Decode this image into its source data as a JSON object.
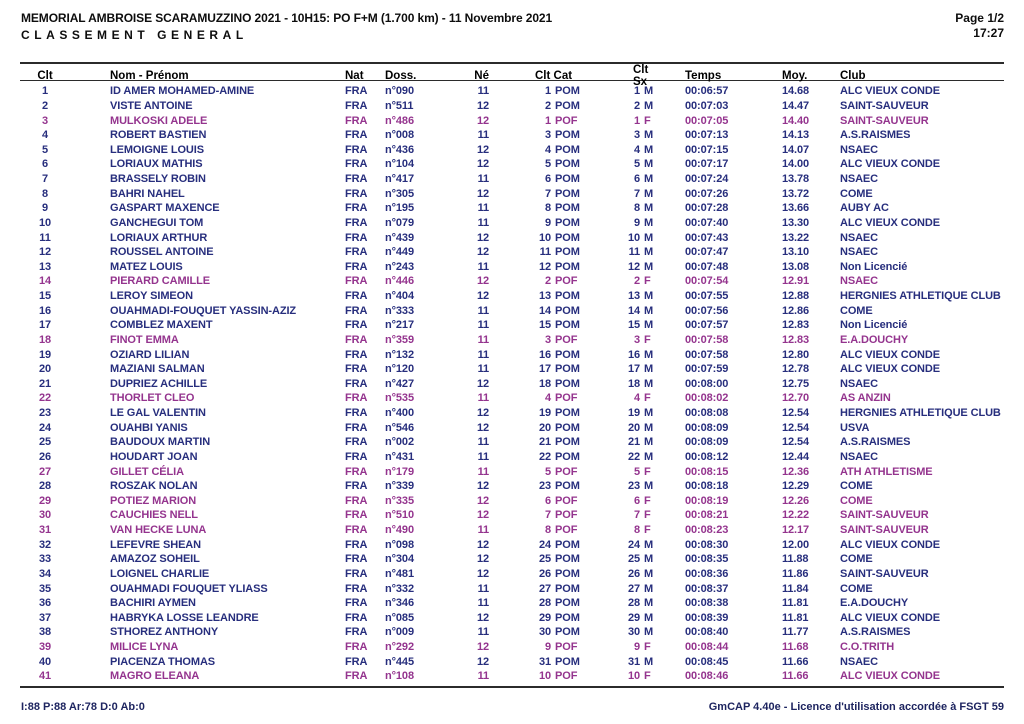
{
  "header": {
    "title": "MEMORIAL AMBROISE SCARAMUZZINO 2021 - 10H15: PO F+M (1.700 km) - 11 Novembre 2021",
    "subtitle": "CLASSEMENT GENERAL",
    "page": "Page 1/2",
    "time": "17:27"
  },
  "colors": {
    "male_row": "#272E7D",
    "female_row": "#94348E"
  },
  "table": {
    "columns": [
      "Clt",
      "Nom - Prénom",
      "Nat",
      "Doss.",
      "Né",
      "Clt Cat",
      "Clt Sx",
      "Temps",
      "Moy.",
      "Club"
    ],
    "rows": [
      {
        "clt": "1",
        "name": "ID AMER MOHAMED-AMINE",
        "nat": "FRA",
        "doss": "n°090",
        "ne": "11",
        "cat_rank": "1",
        "cat": "POM",
        "sx_rank": "1",
        "sx": "M",
        "temps": "00:06:57",
        "moy": "14.68",
        "club": "ALC VIEUX CONDE"
      },
      {
        "clt": "2",
        "name": "VISTE ANTOINE",
        "nat": "FRA",
        "doss": "n°511",
        "ne": "12",
        "cat_rank": "2",
        "cat": "POM",
        "sx_rank": "2",
        "sx": "M",
        "temps": "00:07:03",
        "moy": "14.47",
        "club": "SAINT-SAUVEUR"
      },
      {
        "clt": "3",
        "name": "MULKOSKI ADELE",
        "nat": "FRA",
        "doss": "n°486",
        "ne": "12",
        "cat_rank": "1",
        "cat": "POF",
        "sx_rank": "1",
        "sx": "F",
        "temps": "00:07:05",
        "moy": "14.40",
        "club": "SAINT-SAUVEUR"
      },
      {
        "clt": "4",
        "name": "ROBERT BASTIEN",
        "nat": "FRA",
        "doss": "n°008",
        "ne": "11",
        "cat_rank": "3",
        "cat": "POM",
        "sx_rank": "3",
        "sx": "M",
        "temps": "00:07:13",
        "moy": "14.13",
        "club": "A.S.RAISMES"
      },
      {
        "clt": "5",
        "name": "LEMOIGNE LOUIS",
        "nat": "FRA",
        "doss": "n°436",
        "ne": "12",
        "cat_rank": "4",
        "cat": "POM",
        "sx_rank": "4",
        "sx": "M",
        "temps": "00:07:15",
        "moy": "14.07",
        "club": "NSAEC"
      },
      {
        "clt": "6",
        "name": "LORIAUX MATHIS",
        "nat": "FRA",
        "doss": "n°104",
        "ne": "12",
        "cat_rank": "5",
        "cat": "POM",
        "sx_rank": "5",
        "sx": "M",
        "temps": "00:07:17",
        "moy": "14.00",
        "club": "ALC VIEUX CONDE"
      },
      {
        "clt": "7",
        "name": "BRASSELY ROBIN",
        "nat": "FRA",
        "doss": "n°417",
        "ne": "11",
        "cat_rank": "6",
        "cat": "POM",
        "sx_rank": "6",
        "sx": "M",
        "temps": "00:07:24",
        "moy": "13.78",
        "club": "NSAEC"
      },
      {
        "clt": "8",
        "name": "BAHRI NAHEL",
        "nat": "FRA",
        "doss": "n°305",
        "ne": "12",
        "cat_rank": "7",
        "cat": "POM",
        "sx_rank": "7",
        "sx": "M",
        "temps": "00:07:26",
        "moy": "13.72",
        "club": "COME"
      },
      {
        "clt": "9",
        "name": "GASPART MAXENCE",
        "nat": "FRA",
        "doss": "n°195",
        "ne": "11",
        "cat_rank": "8",
        "cat": "POM",
        "sx_rank": "8",
        "sx": "M",
        "temps": "00:07:28",
        "moy": "13.66",
        "club": "AUBY AC"
      },
      {
        "clt": "10",
        "name": "GANCHEGUI TOM",
        "nat": "FRA",
        "doss": "n°079",
        "ne": "11",
        "cat_rank": "9",
        "cat": "POM",
        "sx_rank": "9",
        "sx": "M",
        "temps": "00:07:40",
        "moy": "13.30",
        "club": "ALC VIEUX CONDE"
      },
      {
        "clt": "11",
        "name": "LORIAUX ARTHUR",
        "nat": "FRA",
        "doss": "n°439",
        "ne": "12",
        "cat_rank": "10",
        "cat": "POM",
        "sx_rank": "10",
        "sx": "M",
        "temps": "00:07:43",
        "moy": "13.22",
        "club": "NSAEC"
      },
      {
        "clt": "12",
        "name": "ROUSSEL ANTOINE",
        "nat": "FRA",
        "doss": "n°449",
        "ne": "12",
        "cat_rank": "11",
        "cat": "POM",
        "sx_rank": "11",
        "sx": "M",
        "temps": "00:07:47",
        "moy": "13.10",
        "club": "NSAEC"
      },
      {
        "clt": "13",
        "name": "MATEZ LOUIS",
        "nat": "FRA",
        "doss": "n°243",
        "ne": "11",
        "cat_rank": "12",
        "cat": "POM",
        "sx_rank": "12",
        "sx": "M",
        "temps": "00:07:48",
        "moy": "13.08",
        "club": "Non Licencié"
      },
      {
        "clt": "14",
        "name": "PIERARD CAMILLE",
        "nat": "FRA",
        "doss": "n°446",
        "ne": "12",
        "cat_rank": "2",
        "cat": "POF",
        "sx_rank": "2",
        "sx": "F",
        "temps": "00:07:54",
        "moy": "12.91",
        "club": "NSAEC"
      },
      {
        "clt": "15",
        "name": "LEROY SIMEON",
        "nat": "FRA",
        "doss": "n°404",
        "ne": "12",
        "cat_rank": "13",
        "cat": "POM",
        "sx_rank": "13",
        "sx": "M",
        "temps": "00:07:55",
        "moy": "12.88",
        "club": "HERGNIES ATHLETIQUE CLUB"
      },
      {
        "clt": "16",
        "name": "OUAHMADI-FOUQUET YASSIN-AZIZ",
        "nat": "FRA",
        "doss": "n°333",
        "ne": "11",
        "cat_rank": "14",
        "cat": "POM",
        "sx_rank": "14",
        "sx": "M",
        "temps": "00:07:56",
        "moy": "12.86",
        "club": "COME"
      },
      {
        "clt": "17",
        "name": "COMBLEZ MAXENT",
        "nat": "FRA",
        "doss": "n°217",
        "ne": "11",
        "cat_rank": "15",
        "cat": "POM",
        "sx_rank": "15",
        "sx": "M",
        "temps": "00:07:57",
        "moy": "12.83",
        "club": "Non Licencié"
      },
      {
        "clt": "18",
        "name": "FINOT EMMA",
        "nat": "FRA",
        "doss": "n°359",
        "ne": "11",
        "cat_rank": "3",
        "cat": "POF",
        "sx_rank": "3",
        "sx": "F",
        "temps": "00:07:58",
        "moy": "12.83",
        "club": "E.A.DOUCHY"
      },
      {
        "clt": "19",
        "name": "OZIARD LILIAN",
        "nat": "FRA",
        "doss": "n°132",
        "ne": "11",
        "cat_rank": "16",
        "cat": "POM",
        "sx_rank": "16",
        "sx": "M",
        "temps": "00:07:58",
        "moy": "12.80",
        "club": "ALC VIEUX CONDE"
      },
      {
        "clt": "20",
        "name": "MAZIANI SALMAN",
        "nat": "FRA",
        "doss": "n°120",
        "ne": "11",
        "cat_rank": "17",
        "cat": "POM",
        "sx_rank": "17",
        "sx": "M",
        "temps": "00:07:59",
        "moy": "12.78",
        "club": "ALC VIEUX CONDE"
      },
      {
        "clt": "21",
        "name": "DUPRIEZ ACHILLE",
        "nat": "FRA",
        "doss": "n°427",
        "ne": "12",
        "cat_rank": "18",
        "cat": "POM",
        "sx_rank": "18",
        "sx": "M",
        "temps": "00:08:00",
        "moy": "12.75",
        "club": "NSAEC"
      },
      {
        "clt": "22",
        "name": "THORLET CLEO",
        "nat": "FRA",
        "doss": "n°535",
        "ne": "11",
        "cat_rank": "4",
        "cat": "POF",
        "sx_rank": "4",
        "sx": "F",
        "temps": "00:08:02",
        "moy": "12.70",
        "club": "AS ANZIN"
      },
      {
        "clt": "23",
        "name": "LE GAL VALENTIN",
        "nat": "FRA",
        "doss": "n°400",
        "ne": "12",
        "cat_rank": "19",
        "cat": "POM",
        "sx_rank": "19",
        "sx": "M",
        "temps": "00:08:08",
        "moy": "12.54",
        "club": "HERGNIES ATHLETIQUE CLUB"
      },
      {
        "clt": "24",
        "name": "OUAHBI YANIS",
        "nat": "FRA",
        "doss": "n°546",
        "ne": "12",
        "cat_rank": "20",
        "cat": "POM",
        "sx_rank": "20",
        "sx": "M",
        "temps": "00:08:09",
        "moy": "12.54",
        "club": "USVA"
      },
      {
        "clt": "25",
        "name": "BAUDOUX MARTIN",
        "nat": "FRA",
        "doss": "n°002",
        "ne": "11",
        "cat_rank": "21",
        "cat": "POM",
        "sx_rank": "21",
        "sx": "M",
        "temps": "00:08:09",
        "moy": "12.54",
        "club": "A.S.RAISMES"
      },
      {
        "clt": "26",
        "name": "HOUDART JOAN",
        "nat": "FRA",
        "doss": "n°431",
        "ne": "11",
        "cat_rank": "22",
        "cat": "POM",
        "sx_rank": "22",
        "sx": "M",
        "temps": "00:08:12",
        "moy": "12.44",
        "club": "NSAEC"
      },
      {
        "clt": "27",
        "name": "GILLET CÉLIA",
        "nat": "FRA",
        "doss": "n°179",
        "ne": "11",
        "cat_rank": "5",
        "cat": "POF",
        "sx_rank": "5",
        "sx": "F",
        "temps": "00:08:15",
        "moy": "12.36",
        "club": "ATH ATHLETISME"
      },
      {
        "clt": "28",
        "name": "ROSZAK NOLAN",
        "nat": "FRA",
        "doss": "n°339",
        "ne": "12",
        "cat_rank": "23",
        "cat": "POM",
        "sx_rank": "23",
        "sx": "M",
        "temps": "00:08:18",
        "moy": "12.29",
        "club": "COME"
      },
      {
        "clt": "29",
        "name": "POTIEZ MARION",
        "nat": "FRA",
        "doss": "n°335",
        "ne": "12",
        "cat_rank": "6",
        "cat": "POF",
        "sx_rank": "6",
        "sx": "F",
        "temps": "00:08:19",
        "moy": "12.26",
        "club": "COME"
      },
      {
        "clt": "30",
        "name": "CAUCHIES NELL",
        "nat": "FRA",
        "doss": "n°510",
        "ne": "12",
        "cat_rank": "7",
        "cat": "POF",
        "sx_rank": "7",
        "sx": "F",
        "temps": "00:08:21",
        "moy": "12.22",
        "club": "SAINT-SAUVEUR"
      },
      {
        "clt": "31",
        "name": "VAN HECKE LUNA",
        "nat": "FRA",
        "doss": "n°490",
        "ne": "11",
        "cat_rank": "8",
        "cat": "POF",
        "sx_rank": "8",
        "sx": "F",
        "temps": "00:08:23",
        "moy": "12.17",
        "club": "SAINT-SAUVEUR"
      },
      {
        "clt": "32",
        "name": "LEFEVRE SHEAN",
        "nat": "FRA",
        "doss": "n°098",
        "ne": "12",
        "cat_rank": "24",
        "cat": "POM",
        "sx_rank": "24",
        "sx": "M",
        "temps": "00:08:30",
        "moy": "12.00",
        "club": "ALC VIEUX CONDE"
      },
      {
        "clt": "33",
        "name": "AMAZOZ SOHEIL",
        "nat": "FRA",
        "doss": "n°304",
        "ne": "12",
        "cat_rank": "25",
        "cat": "POM",
        "sx_rank": "25",
        "sx": "M",
        "temps": "00:08:35",
        "moy": "11.88",
        "club": "COME"
      },
      {
        "clt": "34",
        "name": "LOIGNEL CHARLIE",
        "nat": "FRA",
        "doss": "n°481",
        "ne": "12",
        "cat_rank": "26",
        "cat": "POM",
        "sx_rank": "26",
        "sx": "M",
        "temps": "00:08:36",
        "moy": "11.86",
        "club": "SAINT-SAUVEUR"
      },
      {
        "clt": "35",
        "name": "OUAHMADI FOUQUET YLIASS",
        "nat": "FRA",
        "doss": "n°332",
        "ne": "11",
        "cat_rank": "27",
        "cat": "POM",
        "sx_rank": "27",
        "sx": "M",
        "temps": "00:08:37",
        "moy": "11.84",
        "club": "COME"
      },
      {
        "clt": "36",
        "name": "BACHIRI AYMEN",
        "nat": "FRA",
        "doss": "n°346",
        "ne": "11",
        "cat_rank": "28",
        "cat": "POM",
        "sx_rank": "28",
        "sx": "M",
        "temps": "00:08:38",
        "moy": "11.81",
        "club": "E.A.DOUCHY"
      },
      {
        "clt": "37",
        "name": "HABRYKA LOSSE LEANDRE",
        "nat": "FRA",
        "doss": "n°085",
        "ne": "12",
        "cat_rank": "29",
        "cat": "POM",
        "sx_rank": "29",
        "sx": "M",
        "temps": "00:08:39",
        "moy": "11.81",
        "club": "ALC VIEUX CONDE"
      },
      {
        "clt": "38",
        "name": "STHOREZ ANTHONY",
        "nat": "FRA",
        "doss": "n°009",
        "ne": "11",
        "cat_rank": "30",
        "cat": "POM",
        "sx_rank": "30",
        "sx": "M",
        "temps": "00:08:40",
        "moy": "11.77",
        "club": "A.S.RAISMES"
      },
      {
        "clt": "39",
        "name": "MILICE LYNA",
        "nat": "FRA",
        "doss": "n°292",
        "ne": "12",
        "cat_rank": "9",
        "cat": "POF",
        "sx_rank": "9",
        "sx": "F",
        "temps": "00:08:44",
        "moy": "11.68",
        "club": "C.O.TRITH"
      },
      {
        "clt": "40",
        "name": "PIACENZA THOMAS",
        "nat": "FRA",
        "doss": "n°445",
        "ne": "12",
        "cat_rank": "31",
        "cat": "POM",
        "sx_rank": "31",
        "sx": "M",
        "temps": "00:08:45",
        "moy": "11.66",
        "club": "NSAEC"
      },
      {
        "clt": "41",
        "name": "MAGRO ELEANA",
        "nat": "FRA",
        "doss": "n°108",
        "ne": "11",
        "cat_rank": "10",
        "cat": "POF",
        "sx_rank": "10",
        "sx": "F",
        "temps": "00:08:46",
        "moy": "11.66",
        "club": "ALC VIEUX CONDE"
      }
    ]
  },
  "footer": {
    "left": "I:88 P:88 Ar:78 D:0 Ab:0",
    "right": "GmCAP 4.40e - Licence d'utilisation accordée à FSGT 59"
  }
}
